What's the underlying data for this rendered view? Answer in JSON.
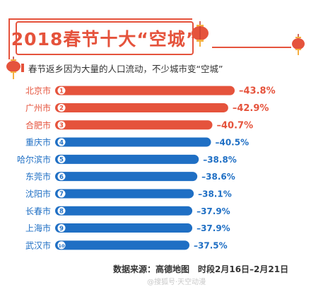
{
  "colors": {
    "accent": "#e5533c",
    "blue": "#1f6fc4",
    "text": "#333333"
  },
  "header": {
    "title": "2018春节十大“空城”",
    "subtitle": "春节返乡因为大量的人口流动，不少城市变“空城”"
  },
  "chart_data": {
    "type": "bar",
    "orientation": "horizontal",
    "title": "2018春节十大“空城”",
    "subtitle": "春节返乡因为大量的人口流动，不少城市变“空城”",
    "categories": [
      "北京市",
      "广州市",
      "合肥市",
      "重庆市",
      "哈尔滨市",
      "东莞市",
      "沈阳市",
      "长春市",
      "上海市",
      "武汉市"
    ],
    "ranks": [
      "1",
      "2",
      "3",
      "4",
      "5",
      "6",
      "7",
      "8",
      "9",
      "10"
    ],
    "values": [
      -43.8,
      -42.9,
      -40.7,
      -40.5,
      -38.8,
      -38.6,
      -38.1,
      -37.9,
      -37.9,
      -37.5
    ],
    "value_labels": [
      "–43.8%",
      "–42.9%",
      "–40.7%",
      "–40.5%",
      "–38.8%",
      "–38.6%",
      "–38.1%",
      "–37.9%",
      "–37.9%",
      "–37.5%"
    ],
    "highlight_count": 3,
    "grid": false
  },
  "footer": {
    "source": "数据来源：高德地图　时段2月16日–2月21日",
    "watermark": "@搜狐号·天空动漫"
  }
}
